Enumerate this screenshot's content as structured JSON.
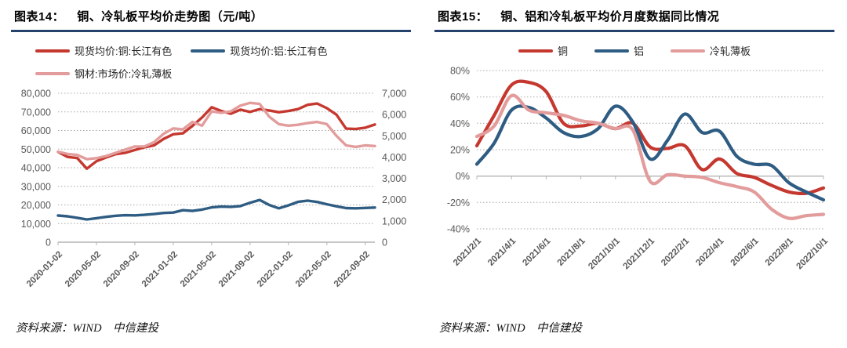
{
  "colors": {
    "copper_red": "#c5382f",
    "aluminum_blue": "#2e5c82",
    "coldrolled_pink": "#e29c9b",
    "title_rule_navy": "#24426b",
    "axis_text_gray": "#595959"
  },
  "panels": [
    {
      "label": "图表14：",
      "source": "资料来源：WIND　中信建投"
    },
    {
      "label": "图表15：",
      "source": "资料来源：WIND　中信建投"
    }
  ],
  "chart_data": [
    {
      "type": "line",
      "smooth": false,
      "title": "铜、冷轧板平均价走势图（元/吨）",
      "legend_position": "top",
      "grid": true,
      "categories": [
        "2020-01",
        "2020-02",
        "2020-03",
        "2020-04",
        "2020-05",
        "2020-06",
        "2020-07",
        "2020-08",
        "2020-09",
        "2020-10",
        "2020-11",
        "2020-12",
        "2021-01",
        "2021-02",
        "2021-03",
        "2021-04",
        "2021-05",
        "2021-06",
        "2021-07",
        "2021-08",
        "2021-09",
        "2021-10",
        "2021-11",
        "2021-12",
        "2022-01",
        "2022-02",
        "2022-03",
        "2022-04",
        "2022-05",
        "2022-06",
        "2022-07",
        "2022-08",
        "2022-09",
        "2022-10"
      ],
      "x_tick_indices": [
        0,
        4,
        8,
        12,
        16,
        20,
        24,
        28,
        32
      ],
      "x_tick_labels": [
        "2020-01-02",
        "2020-05-02",
        "2020-09-02",
        "2021-01-02",
        "2021-05-02",
        "2021-09-02",
        "2022-01-02",
        "2022-05-02",
        "2022-09-02"
      ],
      "y_axes": [
        {
          "side": "left",
          "min": 0,
          "max": 80000,
          "grid": true,
          "tick_labels": [
            "80,000",
            "70,000",
            "60,000",
            "50,000",
            "40,000",
            "30,000",
            "20,000",
            "10,000",
            "0"
          ]
        },
        {
          "side": "right",
          "min": 0,
          "max": 7000,
          "grid": false,
          "tick_labels": [
            "7,000",
            "6,000",
            "5,000",
            "4,000",
            "3,000",
            "2,000",
            "1,000",
            "0"
          ]
        }
      ],
      "baseline_value": 0,
      "series": [
        {
          "name": "现货均价:铜:长江有色",
          "color": "#c5382f",
          "axis": 0,
          "values": [
            48500,
            45800,
            45200,
            39500,
            43500,
            45500,
            47300,
            48000,
            49500,
            51000,
            52000,
            55500,
            58000,
            58500,
            62500,
            67000,
            72500,
            70500,
            69000,
            71200,
            70000,
            71500,
            70800,
            69800,
            70500,
            71500,
            73800,
            74500,
            72000,
            68500,
            61000,
            60800,
            61500,
            63200
          ]
        },
        {
          "name": "现货均价:铝:长江有色",
          "color": "#2e5c82",
          "axis": 0,
          "values": [
            14300,
            13900,
            13100,
            12200,
            12900,
            13600,
            14200,
            14500,
            14400,
            14700,
            15100,
            15700,
            15900,
            17200,
            16800,
            17500,
            18700,
            19100,
            19000,
            19400,
            21200,
            22700,
            20000,
            18200,
            19800,
            21700,
            22300,
            21600,
            20400,
            19300,
            18300,
            18200,
            18400,
            18600
          ]
        },
        {
          "name": "钢材:市场价:冷轧薄板",
          "color": "#e29c9b",
          "axis": 1,
          "values": [
            4250,
            4150,
            4100,
            3900,
            3950,
            4050,
            4200,
            4350,
            4500,
            4500,
            4700,
            5100,
            5350,
            5300,
            5650,
            5480,
            6150,
            6080,
            6150,
            6420,
            6550,
            6500,
            5900,
            5550,
            5480,
            5520,
            5600,
            5650,
            5550,
            5000,
            4550,
            4480,
            4550,
            4520
          ]
        }
      ]
    },
    {
      "type": "line",
      "smooth": true,
      "title": "铜、铝和冷轧板平均价月度数据同比情况",
      "legend_position": "top",
      "grid": true,
      "categories": [
        "2021/2/1",
        "2021/3/1",
        "2021/4/1",
        "2021/5/1",
        "2021/6/1",
        "2021/7/1",
        "2021/8/1",
        "2021/9/1",
        "2021/10/1",
        "2021/11/1",
        "2021/12/1",
        "2022/1/1",
        "2022/2/1",
        "2022/3/1",
        "2022/4/1",
        "2022/5/1",
        "2022/6/1",
        "2022/7/1",
        "2022/8/1",
        "2022/9/1",
        "2022/10/1"
      ],
      "x_tick_indices": [
        0,
        2,
        4,
        6,
        8,
        10,
        12,
        14,
        16,
        18,
        20
      ],
      "x_tick_labels": [
        "2021/2/1",
        "2021/4/1",
        "2021/6/1",
        "2021/8/1",
        "2021/10/1",
        "2021/12/1",
        "2022/2/1",
        "2022/4/1",
        "2022/6/1",
        "2022/8/1",
        "2022/10/1"
      ],
      "y_axes": [
        {
          "side": "left",
          "min": -40,
          "max": 80,
          "grid": true,
          "tick_labels": [
            "80%",
            "60%",
            "40%",
            "20%",
            "0%",
            "-20%",
            "-40%"
          ]
        }
      ],
      "baseline_value": 0,
      "series": [
        {
          "name": "铜",
          "color": "#c5382f",
          "axis": 0,
          "values": [
            23,
            46,
            69,
            71,
            64,
            40,
            38,
            40,
            36,
            40,
            22,
            21,
            23,
            5,
            13,
            2,
            -1,
            -7,
            -12,
            -13,
            -9
          ]
        },
        {
          "name": "铝",
          "color": "#2e5c82",
          "axis": 0,
          "values": [
            9,
            25,
            50,
            52,
            44,
            33,
            30,
            36,
            53,
            41,
            13,
            27,
            47,
            33,
            34,
            15,
            9,
            8,
            -5,
            -12,
            -18
          ]
        },
        {
          "name": "冷轧薄板",
          "color": "#e29c9b",
          "axis": 0,
          "values": [
            30,
            38,
            61,
            50,
            48,
            46,
            42,
            40,
            36,
            35,
            -4,
            1,
            0,
            -1,
            -5,
            -8,
            -12,
            -25,
            -32,
            -30,
            -29
          ]
        }
      ]
    }
  ]
}
